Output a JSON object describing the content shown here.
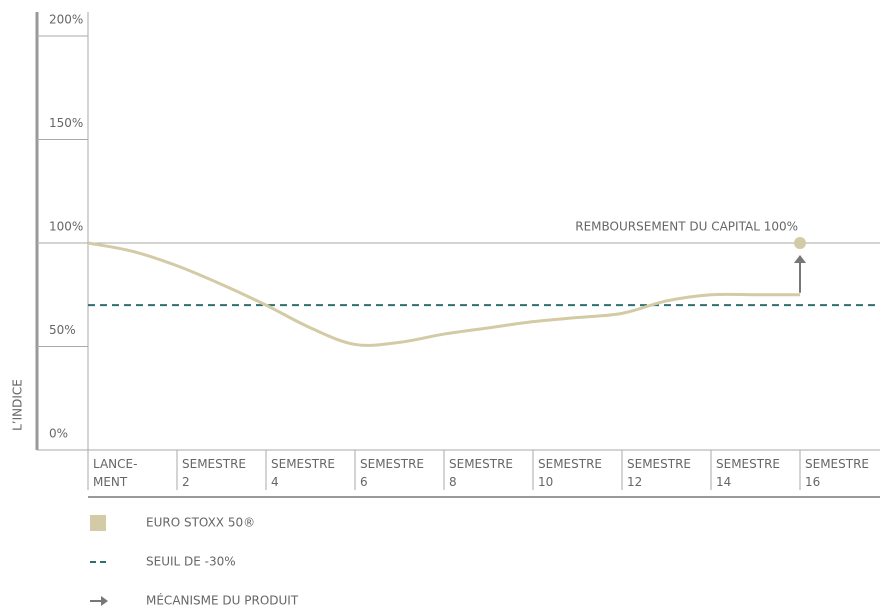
{
  "chart_data": {
    "type": "line",
    "y_label": "L’INDICE",
    "categories": [
      [
        "LANCE-",
        "MENT"
      ],
      [
        "SEMESTRE",
        "2"
      ],
      [
        "SEMESTRE",
        "4"
      ],
      [
        "SEMESTRE",
        "6"
      ],
      [
        "SEMESTRE",
        "8"
      ],
      [
        "SEMESTRE",
        "10"
      ],
      [
        "SEMESTRE",
        "12"
      ],
      [
        "SEMESTRE",
        "14"
      ],
      [
        "SEMESTRE",
        "16"
      ]
    ],
    "x": [
      0,
      1,
      2,
      3,
      4,
      5,
      6,
      7,
      8,
      9,
      10,
      11,
      12,
      13,
      14,
      15,
      16
    ],
    "xlim": [
      0,
      16
    ],
    "series": [
      {
        "name": "EURO STOXX 50®",
        "color": "#d3caa6",
        "values": [
          100,
          96,
          89,
          80,
          70,
          59,
          51,
          52,
          56,
          59,
          62,
          64,
          66,
          72,
          75,
          75,
          75
        ]
      }
    ],
    "ylim": [
      0,
      200
    ],
    "yticks": [
      {
        "value": 0,
        "label": "0%"
      },
      {
        "value": 50,
        "label": "50%"
      },
      {
        "value": 100,
        "label": "100%"
      },
      {
        "value": 150,
        "label": "150%"
      },
      {
        "value": 200,
        "label": "200%"
      }
    ],
    "reference_line": {
      "value": 100,
      "label": "REMBOURSEMENT DU CAPITAL 100%"
    },
    "threshold": {
      "name": "SEUIL DE -30%",
      "value": 70,
      "color": "#2f6f6f"
    },
    "marker": {
      "x": 16,
      "value": 100
    },
    "arrow": {
      "name": "MÉCANISME DU PRODUIT",
      "x": 16,
      "from": 75,
      "to": 100,
      "color": "#777777"
    }
  }
}
